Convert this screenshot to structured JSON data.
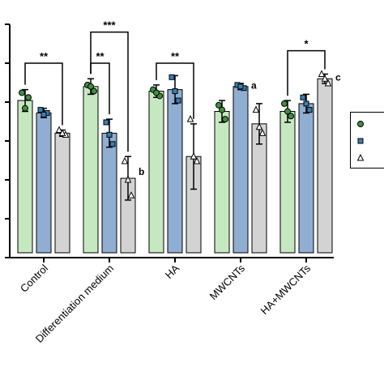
{
  "chart_data": {
    "type": "bar",
    "categories": [
      "Control",
      "Differentiation medium",
      "HA",
      "MWCNTs",
      "HA+MWCNTs"
    ],
    "ylim": [
      0,
      150
    ],
    "series": [
      {
        "color": "#c6e8c0",
        "marker": "circle",
        "values": [
          101,
          110,
          107,
          94,
          94
        ],
        "errors": [
          7,
          5,
          4,
          7,
          7
        ],
        "points": [
          [
            106,
            103,
            96
          ],
          [
            111,
            107,
            110
          ],
          [
            108,
            104,
            106
          ],
          [
            98,
            89,
            95
          ],
          [
            99,
            91,
            94
          ]
        ]
      },
      {
        "color": "#90aed2",
        "marker": "square",
        "values": [
          93,
          80,
          108,
          110,
          99
        ],
        "errors": [
          3,
          9,
          9,
          2,
          6
        ],
        "points": [
          [
            95,
            93,
            92
          ],
          [
            87,
            73,
            79
          ],
          [
            116,
            101,
            107
          ],
          [
            111,
            109,
            110
          ],
          [
            103,
            95,
            99
          ]
        ]
      },
      {
        "color": "#d3d3d3",
        "marker": "triangle",
        "values": [
          80,
          51,
          65,
          86,
          115
        ],
        "errors": [
          2,
          14,
          21,
          13,
          3
        ],
        "points": [
          [
            82,
            79,
            80
          ],
          [
            62,
            40,
            50
          ],
          [
            89,
            62,
            65
          ],
          [
            95,
            80,
            84
          ],
          [
            118,
            112,
            115
          ]
        ]
      }
    ],
    "significance": [
      {
        "from": 0,
        "from_series": 0,
        "to": 0,
        "to_series": 2,
        "level": 125,
        "label": "**"
      },
      {
        "from": 1,
        "from_series": 0,
        "to": 1,
        "to_series": 1,
        "level": 125,
        "label": "**"
      },
      {
        "from": 1,
        "from_series": 0,
        "to": 1,
        "to_series": 2,
        "level": 145,
        "label": "***"
      },
      {
        "from": 2,
        "from_series": 0,
        "to": 2,
        "to_series": 2,
        "level": 125,
        "label": "**"
      },
      {
        "from": 4,
        "from_series": 0,
        "to": 4,
        "to_series": 2,
        "level": 133,
        "label": "*"
      }
    ],
    "annotations": [
      {
        "category": 1,
        "series": 2,
        "text": "b"
      },
      {
        "category": 3,
        "series": 1,
        "text": "a"
      },
      {
        "category": 4,
        "series": 2,
        "text": "c"
      }
    ],
    "grid": false,
    "legend_position": "right"
  }
}
